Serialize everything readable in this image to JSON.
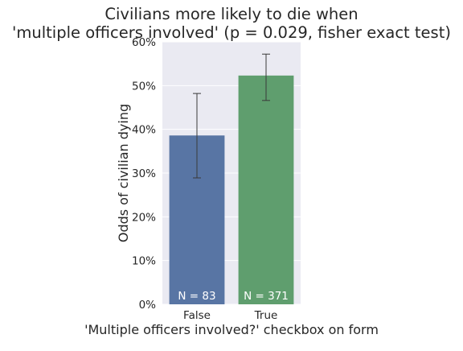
{
  "chart_data": {
    "type": "bar",
    "title": "Civilians more likely to die when\n'multiple officers involved' (p = 0.029, fisher exact test)",
    "xlabel": "'Multiple officers involved?' checkbox on form",
    "ylabel": "Odds of civilian dying",
    "categories": [
      "False",
      "True"
    ],
    "values": [
      0.386,
      0.523
    ],
    "error_low": [
      0.289,
      0.466
    ],
    "error_high": [
      0.482,
      0.572
    ],
    "bar_labels": [
      "N = 83",
      "N = 371"
    ],
    "bar_colors": [
      "#5875a4",
      "#5f9e6e"
    ],
    "ylim": [
      0,
      0.6
    ],
    "yticks": [
      0,
      0.1,
      0.2,
      0.3,
      0.4,
      0.5,
      0.6
    ],
    "ytick_labels": [
      "0%",
      "10%",
      "20%",
      "30%",
      "40%",
      "50%",
      "60%"
    ],
    "grid": true,
    "style": {
      "plot_background": "#eaeaf2",
      "grid_color": "#ffffff",
      "errorbar_color": "#3a3a3a",
      "bar_label_color": "#ffffff",
      "text_color": "#262626"
    }
  }
}
